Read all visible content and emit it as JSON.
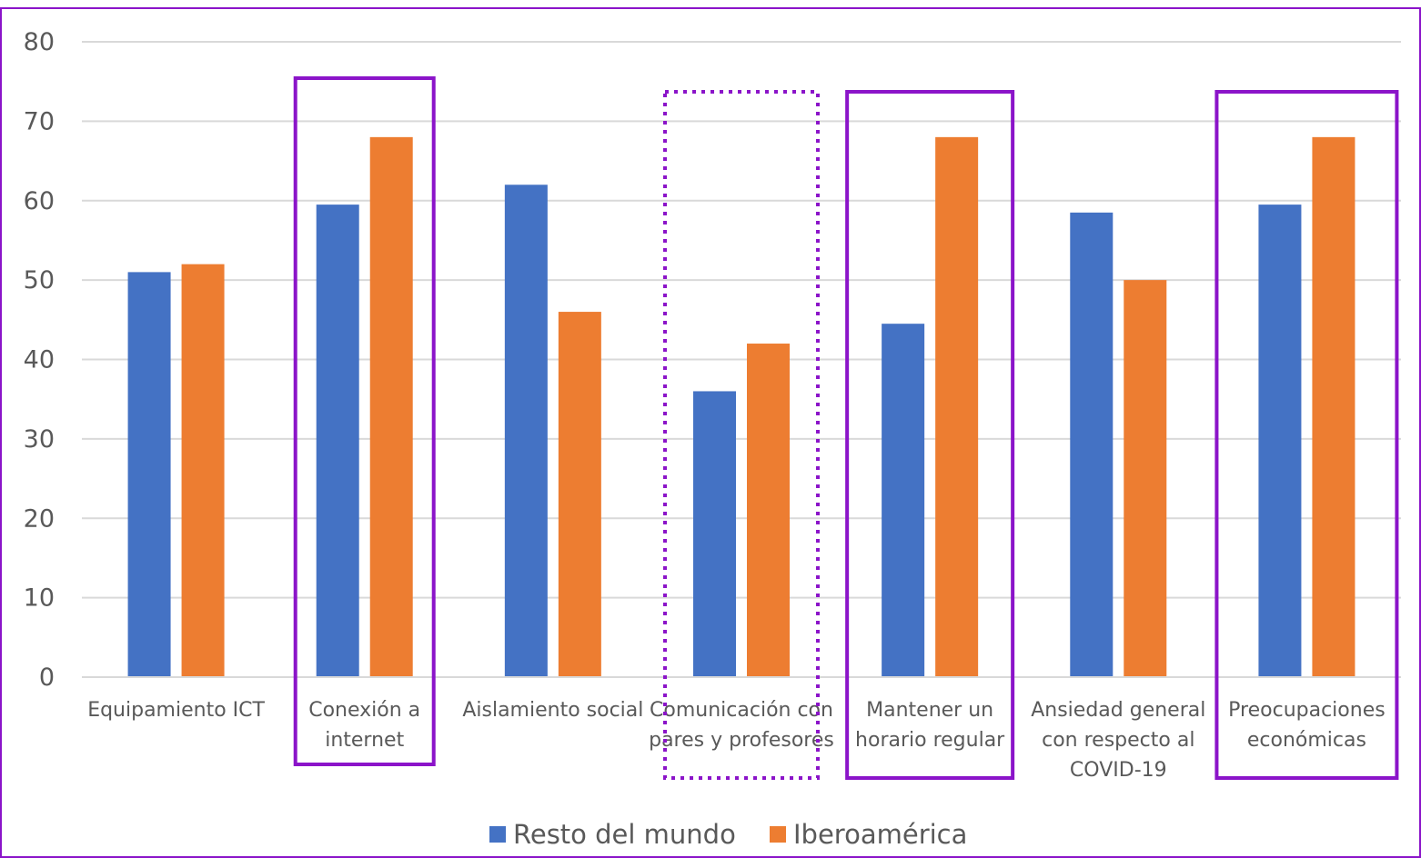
{
  "chart_data": {
    "type": "bar",
    "categories": [
      [
        "Equipamiento ICT"
      ],
      [
        "Conexión a",
        "internet"
      ],
      [
        "Aislamiento social"
      ],
      [
        "Comunicación con",
        "pares y profesores"
      ],
      [
        "Mantener un",
        "horario regular"
      ],
      [
        "Ansiedad general",
        "con respecto al",
        "COVID-19"
      ],
      [
        "Preocupaciones",
        "económicas"
      ]
    ],
    "series": [
      {
        "name": "Resto del mundo",
        "color": "#4472C4",
        "values": [
          51,
          59.5,
          62,
          36,
          44.5,
          58.5,
          59.5
        ]
      },
      {
        "name": "Iberoamérica",
        "color": "#ED7D31",
        "values": [
          52,
          68,
          46,
          42,
          68,
          50,
          68
        ]
      }
    ],
    "ylim": [
      0,
      80
    ],
    "yticks": [
      0,
      10,
      20,
      30,
      40,
      50,
      60,
      70,
      80
    ],
    "grid": true,
    "legend_position": "bottom",
    "highlights": [
      {
        "category_index": 1,
        "style": "solid",
        "color": "#8B14C9"
      },
      {
        "category_index": 3,
        "style": "dotted",
        "color": "#8B14C9"
      },
      {
        "category_index": 4,
        "style": "solid",
        "color": "#8B14C9"
      },
      {
        "category_index": 6,
        "style": "solid",
        "color": "#8B14C9"
      }
    ],
    "frame_color": "#8B14C9"
  }
}
